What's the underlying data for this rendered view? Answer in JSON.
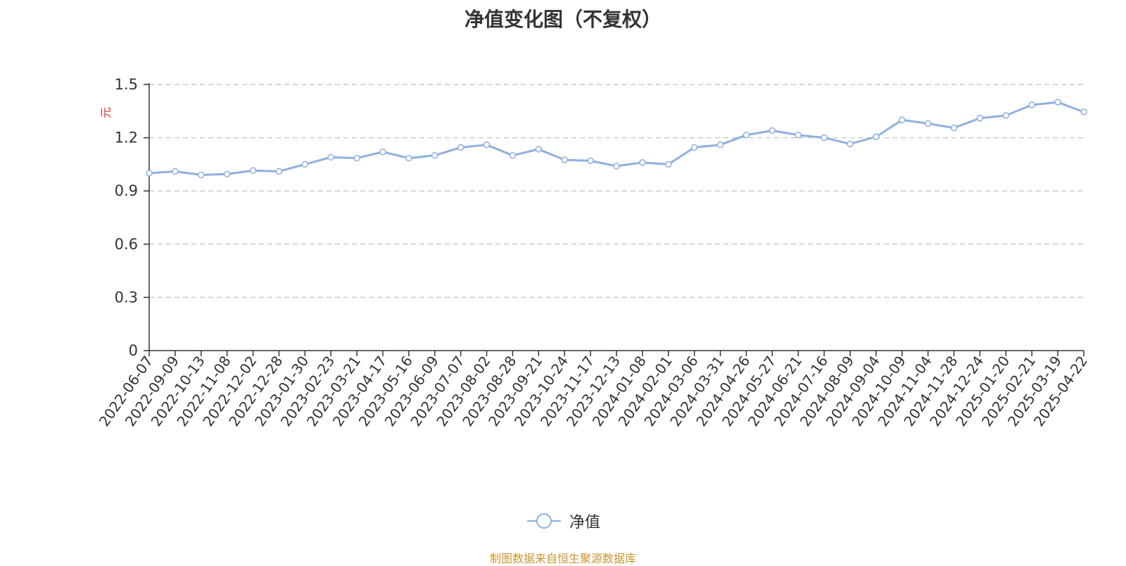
{
  "chart_data": {
    "type": "line",
    "title": "净值变化图（不复权）",
    "ylabel": "元",
    "ylim": [
      0,
      1.5
    ],
    "yticks": [
      "0",
      "0.3",
      "0.6",
      "0.9",
      "1.2",
      "1.5"
    ],
    "grid": true,
    "legend": "bottom-center",
    "source": "制图数据来自恒生聚源数据库",
    "categories": [
      "2022-06-07",
      "2022-09-09",
      "2022-10-13",
      "2022-11-08",
      "2022-12-02",
      "2022-12-28",
      "2023-01-30",
      "2023-02-23",
      "2023-03-21",
      "2023-04-17",
      "2023-05-16",
      "2023-06-09",
      "2023-07-07",
      "2023-08-02",
      "2023-08-28",
      "2023-09-21",
      "2023-10-24",
      "2023-11-17",
      "2023-12-13",
      "2024-01-08",
      "2024-02-01",
      "2024-03-06",
      "2024-03-31",
      "2024-04-26",
      "2024-05-27",
      "2024-06-21",
      "2024-07-16",
      "2024-08-09",
      "2024-09-04",
      "2024-10-09",
      "2024-11-04",
      "2024-11-28",
      "2024-12-24",
      "2025-01-20",
      "2025-02-21",
      "2025-03-19",
      "2025-04-22"
    ],
    "series": [
      {
        "name": "净值",
        "color": "#8fb0de",
        "values": [
          1.0,
          1.01,
          0.99,
          0.995,
          1.015,
          1.01,
          1.05,
          1.09,
          1.085,
          1.12,
          1.085,
          1.1,
          1.145,
          1.16,
          1.1,
          1.135,
          1.075,
          1.07,
          1.04,
          1.06,
          1.05,
          1.145,
          1.16,
          1.215,
          1.24,
          1.215,
          1.2,
          1.165,
          1.205,
          1.3,
          1.28,
          1.255,
          1.31,
          1.325,
          1.385,
          1.4,
          1.345
        ]
      }
    ]
  }
}
